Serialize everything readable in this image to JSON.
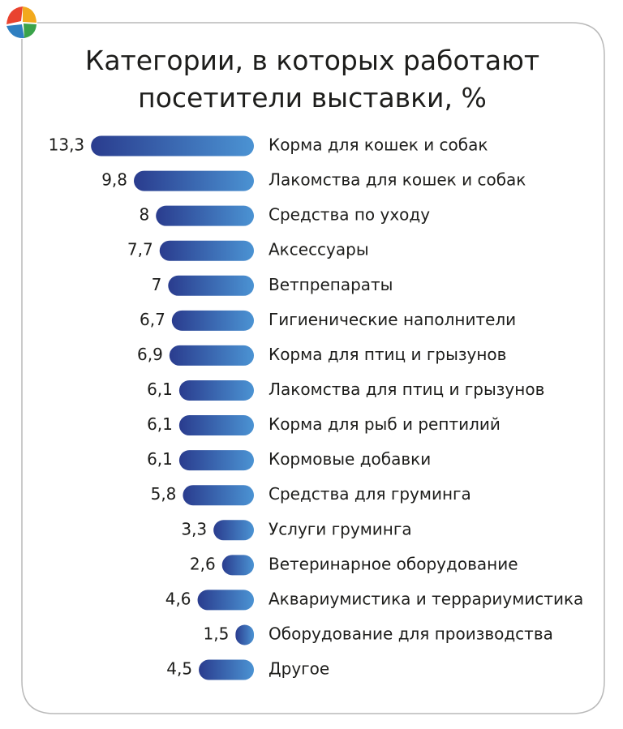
{
  "chart_data": {
    "type": "bar",
    "orientation": "horizontal",
    "title": "Категории, в которых работают посетители выставки, %",
    "categories": [
      "Корма для кошек и собак",
      "Лакомства для кошек и собак",
      "Средства по уходу",
      "Аксессуары",
      "Ветпрепараты",
      "Гигиенические наполнители",
      "Корма для птиц и грызунов",
      "Лакомства для птиц и грызунов",
      "Корма для рыб и рептилий",
      "Кормовые добавки",
      "Средства для груминга",
      "Услуги груминга",
      "Ветеринарное оборудование",
      "Аквариумистика и террариумистика",
      "Оборудование для производства",
      "Другое"
    ],
    "values": [
      13.3,
      9.8,
      8,
      7.7,
      7,
      6.7,
      6.9,
      6.1,
      6.1,
      6.1,
      5.8,
      3.3,
      2.6,
      4.6,
      1.5,
      4.5
    ],
    "value_labels": [
      "13,3",
      "9,8",
      "8",
      "7,7",
      "7",
      "6,7",
      "6,9",
      "6,1",
      "6,1",
      "6,1",
      "5,8",
      "3,3",
      "2,6",
      "4,6",
      "1,5",
      "4,5"
    ],
    "color": [
      "#2a3c8e",
      "#4b93d3"
    ]
  }
}
